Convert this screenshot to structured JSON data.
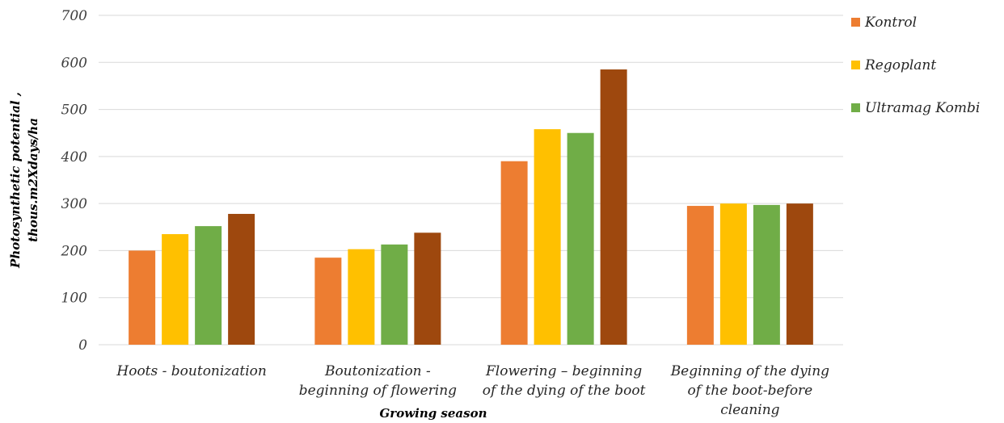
{
  "chart_data": {
    "type": "bar",
    "categories": [
      [
        "Hoots - boutonization"
      ],
      [
        "Boutonization -",
        "beginning of flowering"
      ],
      [
        "Flowering – beginning",
        "of the dying of the boot"
      ],
      [
        "Beginning of the dying",
        "of the boot-before",
        "cleaning"
      ]
    ],
    "series": [
      {
        "name": "Kontrol",
        "color": "#ED7D31",
        "values": [
          200,
          185,
          390,
          295
        ]
      },
      {
        "name": "Regoplant",
        "color": "#FFC000",
        "values": [
          235,
          203,
          458,
          300
        ]
      },
      {
        "name": "Ultramag Kombi",
        "color": "#70AD47",
        "values": [
          252,
          213,
          450,
          297
        ]
      },
      {
        "name": "",
        "color": "#9E480E",
        "values": [
          278,
          238,
          585,
          300
        ]
      }
    ],
    "ylabel": [
      "Photosynthetic potential ,",
      "thous.m2Xdays/ha"
    ],
    "xlabel": "Growing season",
    "ylim": [
      0,
      700
    ],
    "yticks": [
      0,
      100,
      200,
      300,
      400,
      500,
      600,
      700
    ],
    "grid": true,
    "legend_position": "right"
  }
}
